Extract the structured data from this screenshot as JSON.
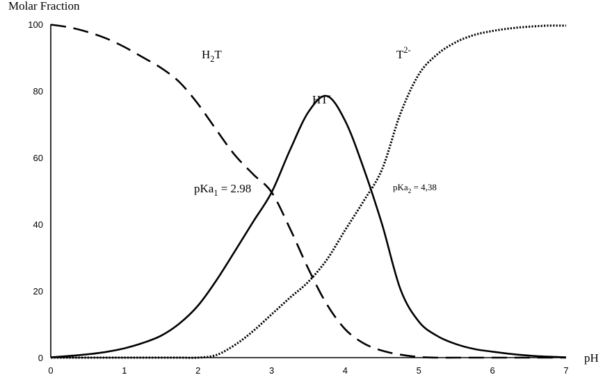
{
  "chart_data": {
    "type": "line",
    "ylabel": "Molar Fraction",
    "xlabel": "pH",
    "xlim": [
      0,
      7
    ],
    "ylim": [
      0,
      100
    ],
    "xticks": [
      0,
      1,
      2,
      3,
      4,
      5,
      6,
      7
    ],
    "yticks": [
      0,
      20,
      40,
      60,
      80,
      100
    ],
    "grid": false,
    "legend": "none",
    "x": [
      0,
      0.25,
      0.5,
      0.75,
      1,
      1.25,
      1.5,
      1.75,
      2,
      2.25,
      2.5,
      2.75,
      3,
      3.25,
      3.5,
      3.75,
      4,
      4.25,
      4.5,
      4.75,
      5,
      5.25,
      5.5,
      5.75,
      6,
      6.25,
      6.5,
      6.75,
      7
    ],
    "series": [
      {
        "name": "H2T",
        "style": "dashed",
        "values": [
          99.9,
          99.1,
          97.7,
          95.8,
          93.2,
          90.1,
          86.9,
          82.6,
          76.1,
          68.3,
          60.8,
          55.0,
          49.6,
          38.7,
          26.6,
          16.0,
          8.5,
          4.3,
          2.1,
          0.9,
          0.2,
          0,
          0,
          0,
          0,
          0,
          0,
          0,
          0
        ]
      },
      {
        "name": "HT-",
        "style": "solid",
        "values": [
          0.1,
          0.5,
          1.0,
          1.7,
          2.8,
          4.4,
          6.6,
          10.3,
          15.6,
          23.2,
          31.9,
          40.8,
          49.6,
          62.3,
          73.7,
          78.5,
          71.0,
          56.8,
          40.0,
          20.5,
          10.8,
          6.5,
          4.1,
          2.6,
          1.8,
          1.1,
          0.6,
          0.3,
          0.1
        ]
      },
      {
        "name": "T2-",
        "style": "dotted",
        "values": [
          0,
          0,
          0,
          0,
          0,
          0,
          0,
          0,
          0,
          0.8,
          3.8,
          8.0,
          13.0,
          18.0,
          22.8,
          29.4,
          38.3,
          47.0,
          56.5,
          73.2,
          85.0,
          91.0,
          94.6,
          96.8,
          98.0,
          98.8,
          99.3,
          99.6,
          99.6
        ]
      }
    ],
    "series_labels": [
      {
        "base": "H",
        "sub": "2",
        "rest": "T",
        "sup": ""
      },
      {
        "base": "HT",
        "sub": "",
        "rest": "",
        "sup": "-"
      },
      {
        "base": "T",
        "sub": "",
        "rest": "",
        "sup": "2-"
      }
    ],
    "annotations": [
      {
        "prefix": "pKa",
        "sub": "1",
        "text": " = 2.98"
      },
      {
        "prefix": "pKa",
        "sub": "2",
        "text": " = 4,38"
      }
    ]
  }
}
